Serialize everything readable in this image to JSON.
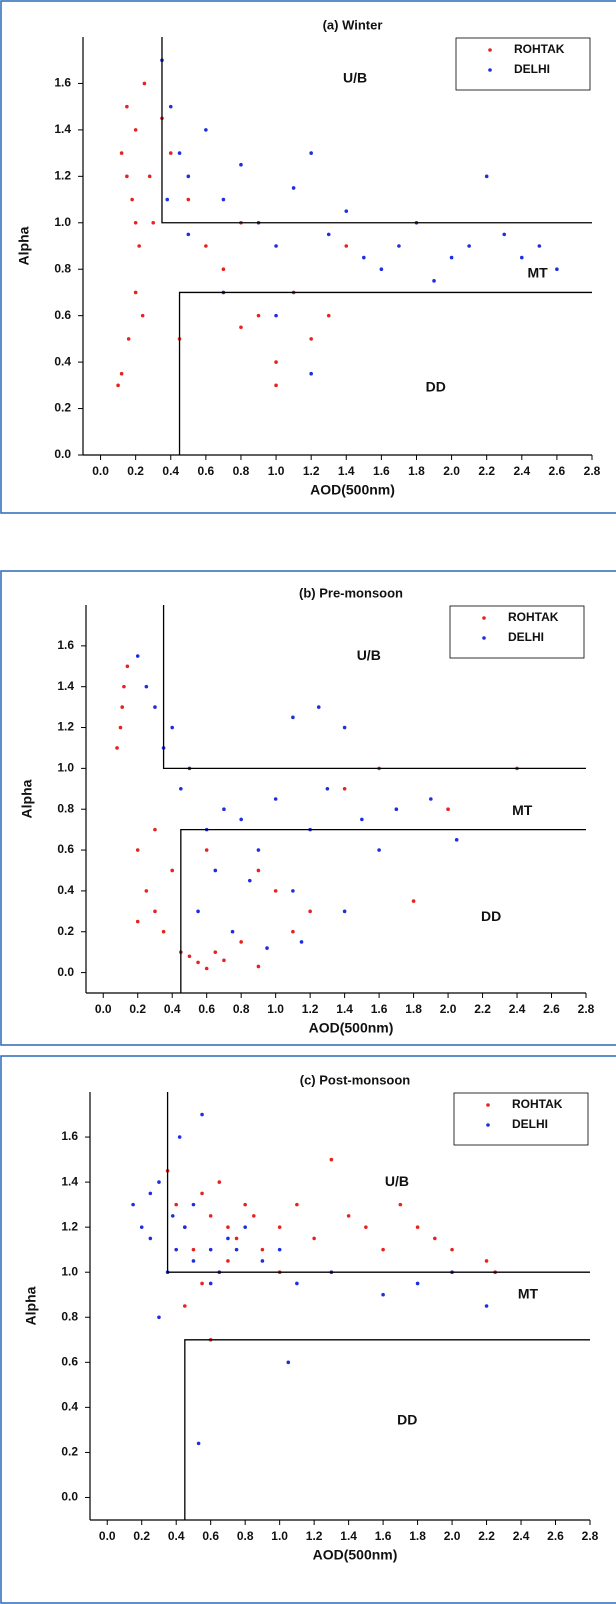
{
  "chart_data": [
    {
      "type": "scatter",
      "title": "(a) Winter",
      "x_label": "AOD(500nm)",
      "y_label": "Alpha",
      "legend": "upper right",
      "xlim": [
        -0.1,
        2.8
      ],
      "ylim": [
        0,
        1.8
      ],
      "xticks": [
        {
          "value": 0,
          "label": "0.0"
        },
        0.2,
        0.4,
        0.6,
        0.8,
        {
          "value": 1,
          "label": "1.0"
        },
        1.2,
        1.4,
        1.6,
        1.8,
        {
          "value": 2,
          "label": "2.0"
        },
        2.2,
        2.4,
        2.6,
        2.8
      ],
      "yticks": [
        {
          "value": 0,
          "label": "0.0"
        },
        0.2,
        0.4,
        0.6,
        0.8,
        {
          "value": 1,
          "label": "1.0"
        },
        1.2,
        1.4,
        1.6
      ],
      "series": [
        {
          "name": "ROHTAK",
          "color": "#e8231f",
          "x": [
            0.12,
            0.15,
            0.18,
            0.2,
            0.22,
            0.25,
            0.28,
            0.3,
            0.12,
            0.16,
            0.2,
            0.24,
            0.1,
            0.15,
            0.2,
            0.4,
            0.5,
            0.6,
            0.7,
            0.8,
            0.9,
            1.0,
            1.1,
            1.2,
            1.4,
            0.45,
            0.8,
            1.0,
            1.3,
            0.35
          ],
          "y": [
            1.3,
            1.5,
            1.1,
            1.4,
            0.9,
            1.6,
            1.2,
            1.0,
            0.35,
            0.5,
            0.7,
            0.6,
            0.3,
            1.2,
            1.0,
            1.3,
            1.1,
            0.9,
            0.8,
            1.0,
            0.6,
            0.4,
            0.7,
            0.5,
            0.9,
            0.5,
            0.55,
            0.3,
            0.6,
            1.45
          ]
        },
        {
          "name": "DELHI",
          "color": "#1f2fe0",
          "x": [
            0.35,
            0.4,
            0.45,
            0.5,
            0.6,
            0.7,
            0.8,
            0.9,
            1.0,
            1.1,
            1.2,
            1.3,
            1.4,
            1.5,
            1.6,
            1.7,
            1.8,
            1.9,
            2.0,
            2.1,
            2.2,
            2.3,
            2.4,
            2.5,
            2.6,
            0.5,
            0.7,
            1.0,
            1.2,
            0.38
          ],
          "y": [
            1.7,
            1.5,
            1.3,
            1.2,
            1.4,
            1.1,
            1.25,
            1.0,
            0.9,
            1.15,
            1.3,
            0.95,
            1.05,
            0.85,
            0.8,
            0.9,
            1.0,
            0.75,
            0.85,
            0.9,
            1.2,
            0.95,
            0.85,
            0.9,
            0.8,
            0.95,
            0.7,
            0.6,
            0.35,
            1.1
          ]
        }
      ],
      "lines": [
        {
          "color": "#000000",
          "x": [
            0.35,
            0.35,
            2.8
          ],
          "y": [
            1.8,
            1.0,
            1.0
          ]
        },
        {
          "color": "#000000",
          "x": [
            0.45,
            0.45,
            2.8
          ],
          "y": [
            0,
            0.7,
            0.7
          ]
        }
      ],
      "annotations": [
        {
          "text": "U/B",
          "x": 1.45,
          "y": 1.62
        },
        {
          "text": "MT",
          "x": 2.49,
          "y": 0.78
        },
        {
          "text": "DD",
          "x": 1.91,
          "y": 0.29
        }
      ]
    },
    {
      "type": "scatter",
      "title": "(b) Pre-monsoon",
      "x_label": "AOD(500nm)",
      "y_label": "Alpha",
      "legend": "upper right",
      "xlim": [
        -0.1,
        2.8
      ],
      "ylim": [
        -0.1,
        1.8
      ],
      "xticks": [
        {
          "value": 0,
          "label": "0.0"
        },
        0.2,
        0.4,
        0.6,
        0.8,
        {
          "value": 1,
          "label": "1.0"
        },
        1.2,
        1.4,
        1.6,
        1.8,
        {
          "value": 2,
          "label": "2.0"
        },
        2.2,
        2.4,
        2.6,
        2.8
      ],
      "yticks": [
        {
          "value": 0,
          "label": "0.0"
        },
        0.2,
        0.4,
        0.6,
        0.8,
        {
          "value": 1,
          "label": "1.0"
        },
        1.2,
        1.4,
        1.6
      ],
      "series": [
        {
          "name": "ROHTAK",
          "color": "#e8231f",
          "x": [
            0.1,
            0.12,
            0.08,
            0.14,
            0.11,
            0.2,
            0.25,
            0.3,
            0.35,
            0.4,
            0.45,
            0.5,
            0.55,
            0.6,
            0.65,
            0.7,
            0.8,
            0.9,
            1.0,
            1.1,
            1.2,
            1.4,
            1.6,
            1.8,
            2.0,
            2.4,
            0.3,
            0.6,
            0.2,
            0.9
          ],
          "y": [
            1.2,
            1.4,
            1.1,
            1.5,
            1.3,
            0.6,
            0.4,
            0.3,
            0.2,
            0.5,
            0.1,
            0.08,
            0.05,
            0.02,
            0.1,
            0.06,
            0.15,
            0.03,
            0.4,
            0.2,
            0.3,
            0.9,
            1.0,
            0.35,
            0.8,
            1.0,
            0.7,
            0.6,
            0.25,
            0.5
          ]
        },
        {
          "name": "DELHI",
          "color": "#1f2fe0",
          "x": [
            0.2,
            0.25,
            0.3,
            0.35,
            0.4,
            0.45,
            0.5,
            0.6,
            0.7,
            0.8,
            0.9,
            1.0,
            1.1,
            1.2,
            1.3,
            1.4,
            1.5,
            1.6,
            1.7,
            1.9,
            2.05,
            1.1,
            1.25,
            1.4,
            0.55,
            0.75,
            0.95,
            1.15,
            0.85,
            0.65
          ],
          "y": [
            1.55,
            1.4,
            1.3,
            1.1,
            1.2,
            0.9,
            1.0,
            0.7,
            0.8,
            0.75,
            0.6,
            0.85,
            0.4,
            0.7,
            0.9,
            0.3,
            0.75,
            0.6,
            0.8,
            0.85,
            0.65,
            1.25,
            1.3,
            1.2,
            0.3,
            0.2,
            0.12,
            0.15,
            0.45,
            0.5
          ]
        }
      ],
      "lines": [
        {
          "color": "#000000",
          "x": [
            0.35,
            0.35,
            2.8
          ],
          "y": [
            1.8,
            1.0,
            1.0
          ]
        },
        {
          "color": "#000000",
          "x": [
            0.45,
            0.45,
            2.8
          ],
          "y": [
            -0.1,
            0.7,
            0.7
          ]
        }
      ],
      "annotations": [
        {
          "text": "U/B",
          "x": 1.54,
          "y": 1.55
        },
        {
          "text": "MT",
          "x": 2.43,
          "y": 0.79
        },
        {
          "text": "DD",
          "x": 2.25,
          "y": 0.27
        }
      ]
    },
    {
      "type": "scatter",
      "title": "(c) Post-monsoon",
      "x_label": "AOD(500nm)",
      "y_label": "Alpha",
      "legend": "upper right",
      "xlim": [
        -0.1,
        2.8
      ],
      "ylim": [
        -0.1,
        1.8
      ],
      "xticks": [
        {
          "value": 0,
          "label": "0.0"
        },
        0.2,
        0.4,
        0.6,
        0.8,
        {
          "value": 1,
          "label": "1.0"
        },
        1.2,
        1.4,
        1.6,
        1.8,
        {
          "value": 2,
          "label": "2.0"
        },
        2.2,
        2.4,
        2.6,
        2.8
      ],
      "yticks": [
        {
          "value": 0,
          "label": "0.0"
        },
        0.2,
        0.4,
        0.6,
        0.8,
        {
          "value": 1,
          "label": "1.0"
        },
        1.2,
        1.4,
        1.6
      ],
      "series": [
        {
          "name": "ROHTAK",
          "color": "#e8231f",
          "x": [
            0.35,
            0.4,
            0.45,
            0.5,
            0.55,
            0.6,
            0.65,
            0.7,
            0.75,
            0.8,
            0.85,
            0.9,
            1.0,
            1.1,
            1.2,
            1.3,
            1.4,
            1.5,
            1.6,
            1.7,
            1.8,
            1.9,
            2.0,
            2.2,
            2.25,
            0.45,
            0.6,
            0.55,
            0.7,
            1.0
          ],
          "y": [
            1.45,
            1.3,
            1.2,
            1.1,
            1.35,
            1.25,
            1.4,
            1.2,
            1.15,
            1.3,
            1.25,
            1.1,
            1.2,
            1.3,
            1.15,
            1.5,
            1.25,
            1.2,
            1.1,
            1.3,
            1.2,
            1.15,
            1.1,
            1.05,
            1.0,
            0.85,
            0.7,
            0.95,
            1.05,
            1.0
          ]
        },
        {
          "name": "DELHI",
          "color": "#1f2fe0",
          "x": [
            0.15,
            0.2,
            0.25,
            0.3,
            0.35,
            0.4,
            0.45,
            0.5,
            0.55,
            0.6,
            0.65,
            0.7,
            0.8,
            0.9,
            1.0,
            1.1,
            1.3,
            1.6,
            1.8,
            2.0,
            2.2,
            0.53,
            1.05,
            0.42,
            0.3,
            0.38,
            0.6,
            0.75,
            0.25,
            0.5
          ],
          "y": [
            1.3,
            1.2,
            1.15,
            0.8,
            1.0,
            1.1,
            1.2,
            1.05,
            1.7,
            1.1,
            1.0,
            1.15,
            1.2,
            1.05,
            1.1,
            0.95,
            1.0,
            0.9,
            0.95,
            1.0,
            0.85,
            0.24,
            0.6,
            1.6,
            1.4,
            1.25,
            0.95,
            1.1,
            1.35,
            1.3
          ]
        }
      ],
      "lines": [
        {
          "color": "#000000",
          "x": [
            0.35,
            0.35,
            2.8
          ],
          "y": [
            1.8,
            1.0,
            1.0
          ]
        },
        {
          "color": "#000000",
          "x": [
            0.45,
            0.45,
            2.8
          ],
          "y": [
            -0.1,
            0.7,
            0.7
          ]
        }
      ],
      "annotations": [
        {
          "text": "U/B",
          "x": 1.68,
          "y": 1.4
        },
        {
          "text": "MT",
          "x": 2.44,
          "y": 0.9
        },
        {
          "text": "DD",
          "x": 1.74,
          "y": 0.34
        }
      ]
    }
  ]
}
